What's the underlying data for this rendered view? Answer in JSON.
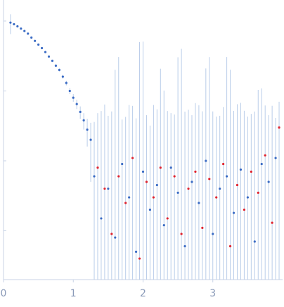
{
  "chart_data": {
    "type": "scatter",
    "xlim": [
      0,
      4
    ],
    "xticks": [
      0,
      1,
      2,
      3
    ],
    "ylim": [
      0.0002,
      2
    ],
    "yticks": [
      0.001,
      0.01,
      0.1,
      1
    ],
    "ylog": true,
    "error_color": "#b9cde9",
    "series": [
      {
        "color": "#3a6bc4",
        "x": [
          0.1,
          0.15,
          0.2,
          0.25,
          0.3,
          0.35,
          0.4,
          0.45,
          0.5,
          0.55,
          0.6,
          0.65,
          0.7,
          0.75,
          0.8,
          0.85,
          0.9,
          0.95,
          1.0,
          1.05,
          1.1,
          1.15,
          1.2,
          1.25,
          1.3,
          1.4,
          1.5,
          1.6,
          1.7,
          1.8,
          1.9,
          2.0,
          2.1,
          2.2,
          2.3,
          2.4,
          2.5,
          2.6,
          2.7,
          2.8,
          2.9,
          3.0,
          3.1,
          3.2,
          3.3,
          3.4,
          3.5,
          3.6,
          3.7,
          3.8,
          3.9
        ],
        "values": [
          0.95,
          0.9,
          0.84,
          0.78,
          0.72,
          0.66,
          0.58,
          0.52,
          0.46,
          0.41,
          0.36,
          0.31,
          0.27,
          0.23,
          0.2,
          0.16,
          0.13,
          0.1,
          0.08,
          0.065,
          0.05,
          0.038,
          0.028,
          0.02,
          0.006,
          0.0015,
          0.004,
          0.0008,
          0.009,
          0.003,
          0.0005,
          0.007,
          0.002,
          0.0045,
          0.0012,
          0.008,
          0.0035,
          0.0006,
          0.005,
          0.0025,
          0.01,
          0.0009,
          0.004,
          0.006,
          0.0018,
          0.0075,
          0.003,
          0.0007,
          0.009,
          0.005,
          0.011
        ],
        "errors": [
          0.3,
          0.01,
          0.01,
          0.01,
          0.01,
          0.01,
          0.01,
          0.01,
          0.01,
          0.01,
          0.01,
          0.01,
          0.01,
          0.01,
          0.01,
          0.01,
          0.01,
          0.01,
          0.01,
          0.01,
          0.01,
          0.01,
          0.012,
          0.015,
          0.03,
          0.05,
          0.04,
          0.2,
          0.03,
          0.06,
          0.04,
          0.5,
          0.03,
          0.05,
          0.1,
          0.04,
          0.3,
          0.05,
          0.04,
          0.06,
          0.2,
          0.05,
          0.04,
          0.3,
          0.05,
          0.06,
          0.04,
          0.05,
          0.1,
          0.04,
          0.03
        ]
      },
      {
        "color": "#e0242f",
        "x": [
          1.35,
          1.45,
          1.55,
          1.65,
          1.75,
          1.85,
          1.95,
          2.05,
          2.15,
          2.25,
          2.35,
          2.45,
          2.55,
          2.65,
          2.75,
          2.85,
          2.95,
          3.05,
          3.15,
          3.25,
          3.35,
          3.45,
          3.55,
          3.65,
          3.75,
          3.85,
          3.95
        ],
        "values": [
          0.008,
          0.004,
          0.0009,
          0.006,
          0.0025,
          0.011,
          0.0004,
          0.005,
          0.003,
          0.008,
          0.0015,
          0.006,
          0.0009,
          0.004,
          0.007,
          0.0011,
          0.0055,
          0.003,
          0.009,
          0.0006,
          0.0045,
          0.002,
          0.007,
          0.0035,
          0.012,
          0.0013,
          0.03
        ],
        "errors": [
          0.04,
          0.06,
          0.05,
          0.3,
          0.04,
          0.05,
          0.5,
          0.04,
          0.06,
          0.2,
          0.05,
          0.04,
          0.4,
          0.05,
          0.06,
          0.05,
          0.3,
          0.04,
          0.05,
          0.2,
          0.06,
          0.05,
          0.04,
          0.1,
          0.05,
          0.06,
          0.04
        ]
      }
    ]
  }
}
